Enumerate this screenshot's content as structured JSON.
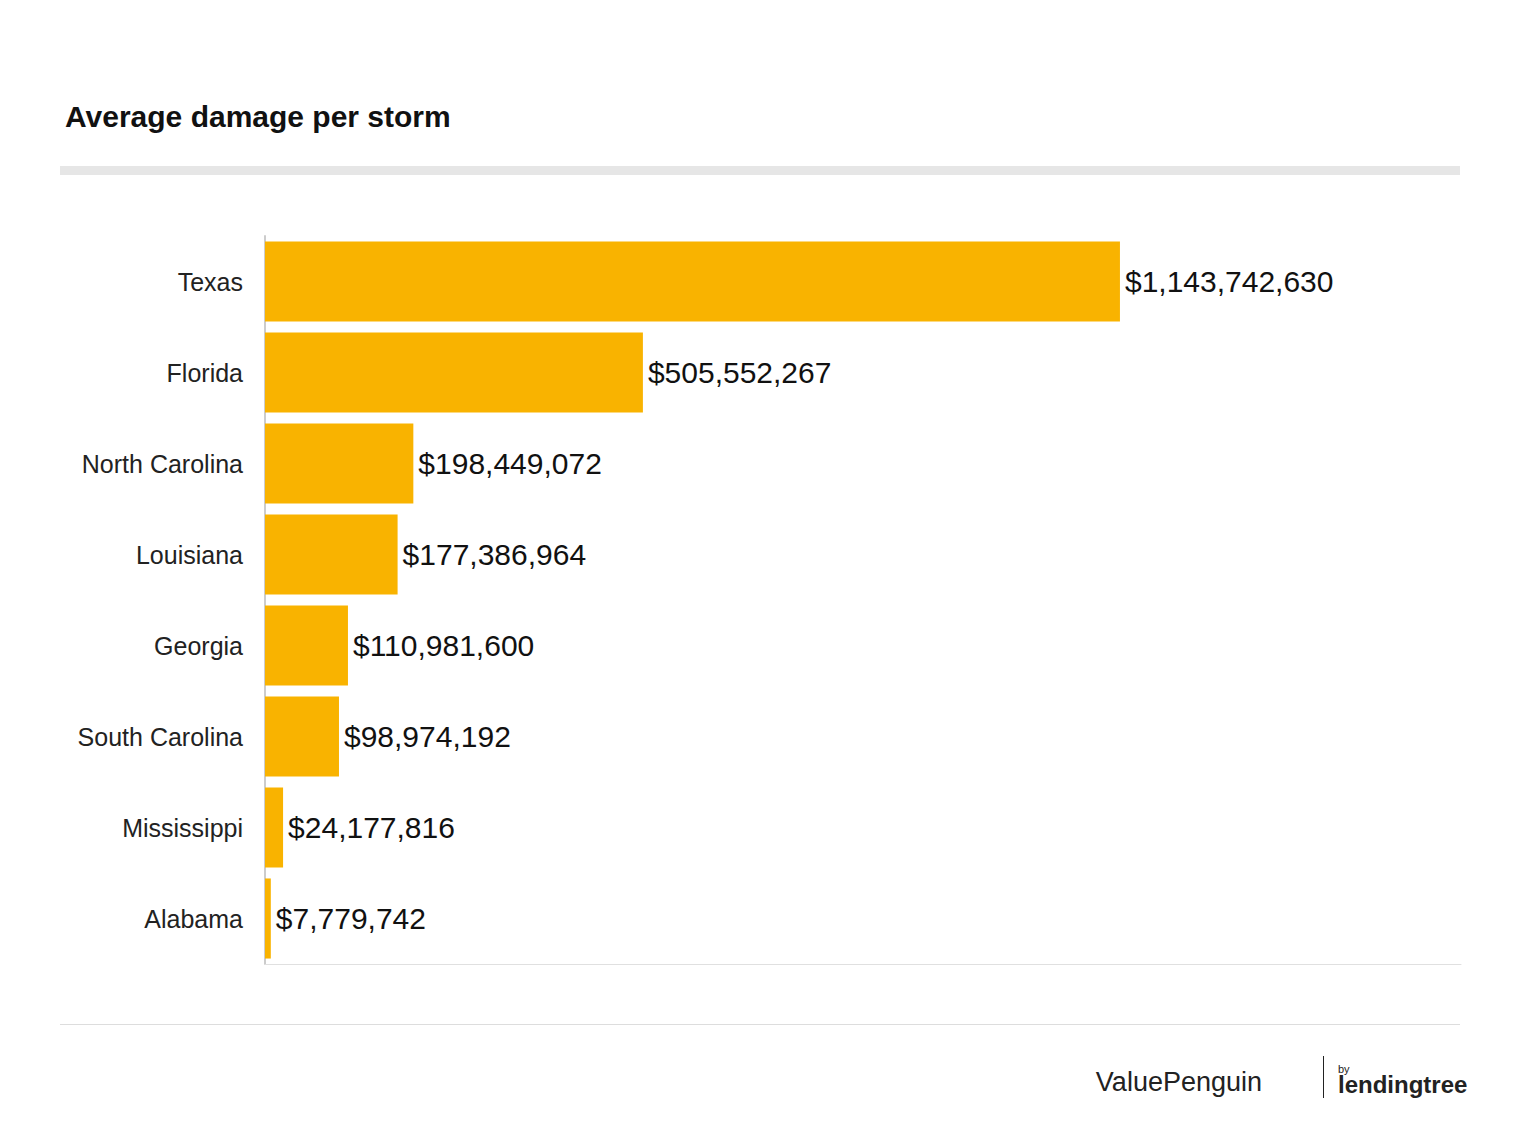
{
  "chart_data": {
    "type": "bar",
    "title": "Average damage per storm",
    "orientation": "horizontal",
    "categories": [
      "Texas",
      "Florida",
      "North Carolina",
      "Louisiana",
      "Georgia",
      "South Carolina",
      "Mississippi",
      "Alabama"
    ],
    "values": [
      1143742630,
      505552267,
      198449072,
      177386964,
      110981600,
      98974192,
      24177816,
      7779742
    ],
    "value_labels": [
      "$1,143,742,630",
      "$505,552,267",
      "$198,449,072",
      "$177,386,964",
      "$110,981,600",
      "$98,974,192",
      "$24,177,816",
      "$7,779,742"
    ],
    "color": "#f9b300",
    "xlim": [
      0,
      1600000000
    ],
    "xticks": [],
    "grid": false,
    "data_labels": true,
    "tick_labels": "y",
    "annotations": [
      "ValuePenguin",
      "by",
      "lendingtree"
    ]
  }
}
